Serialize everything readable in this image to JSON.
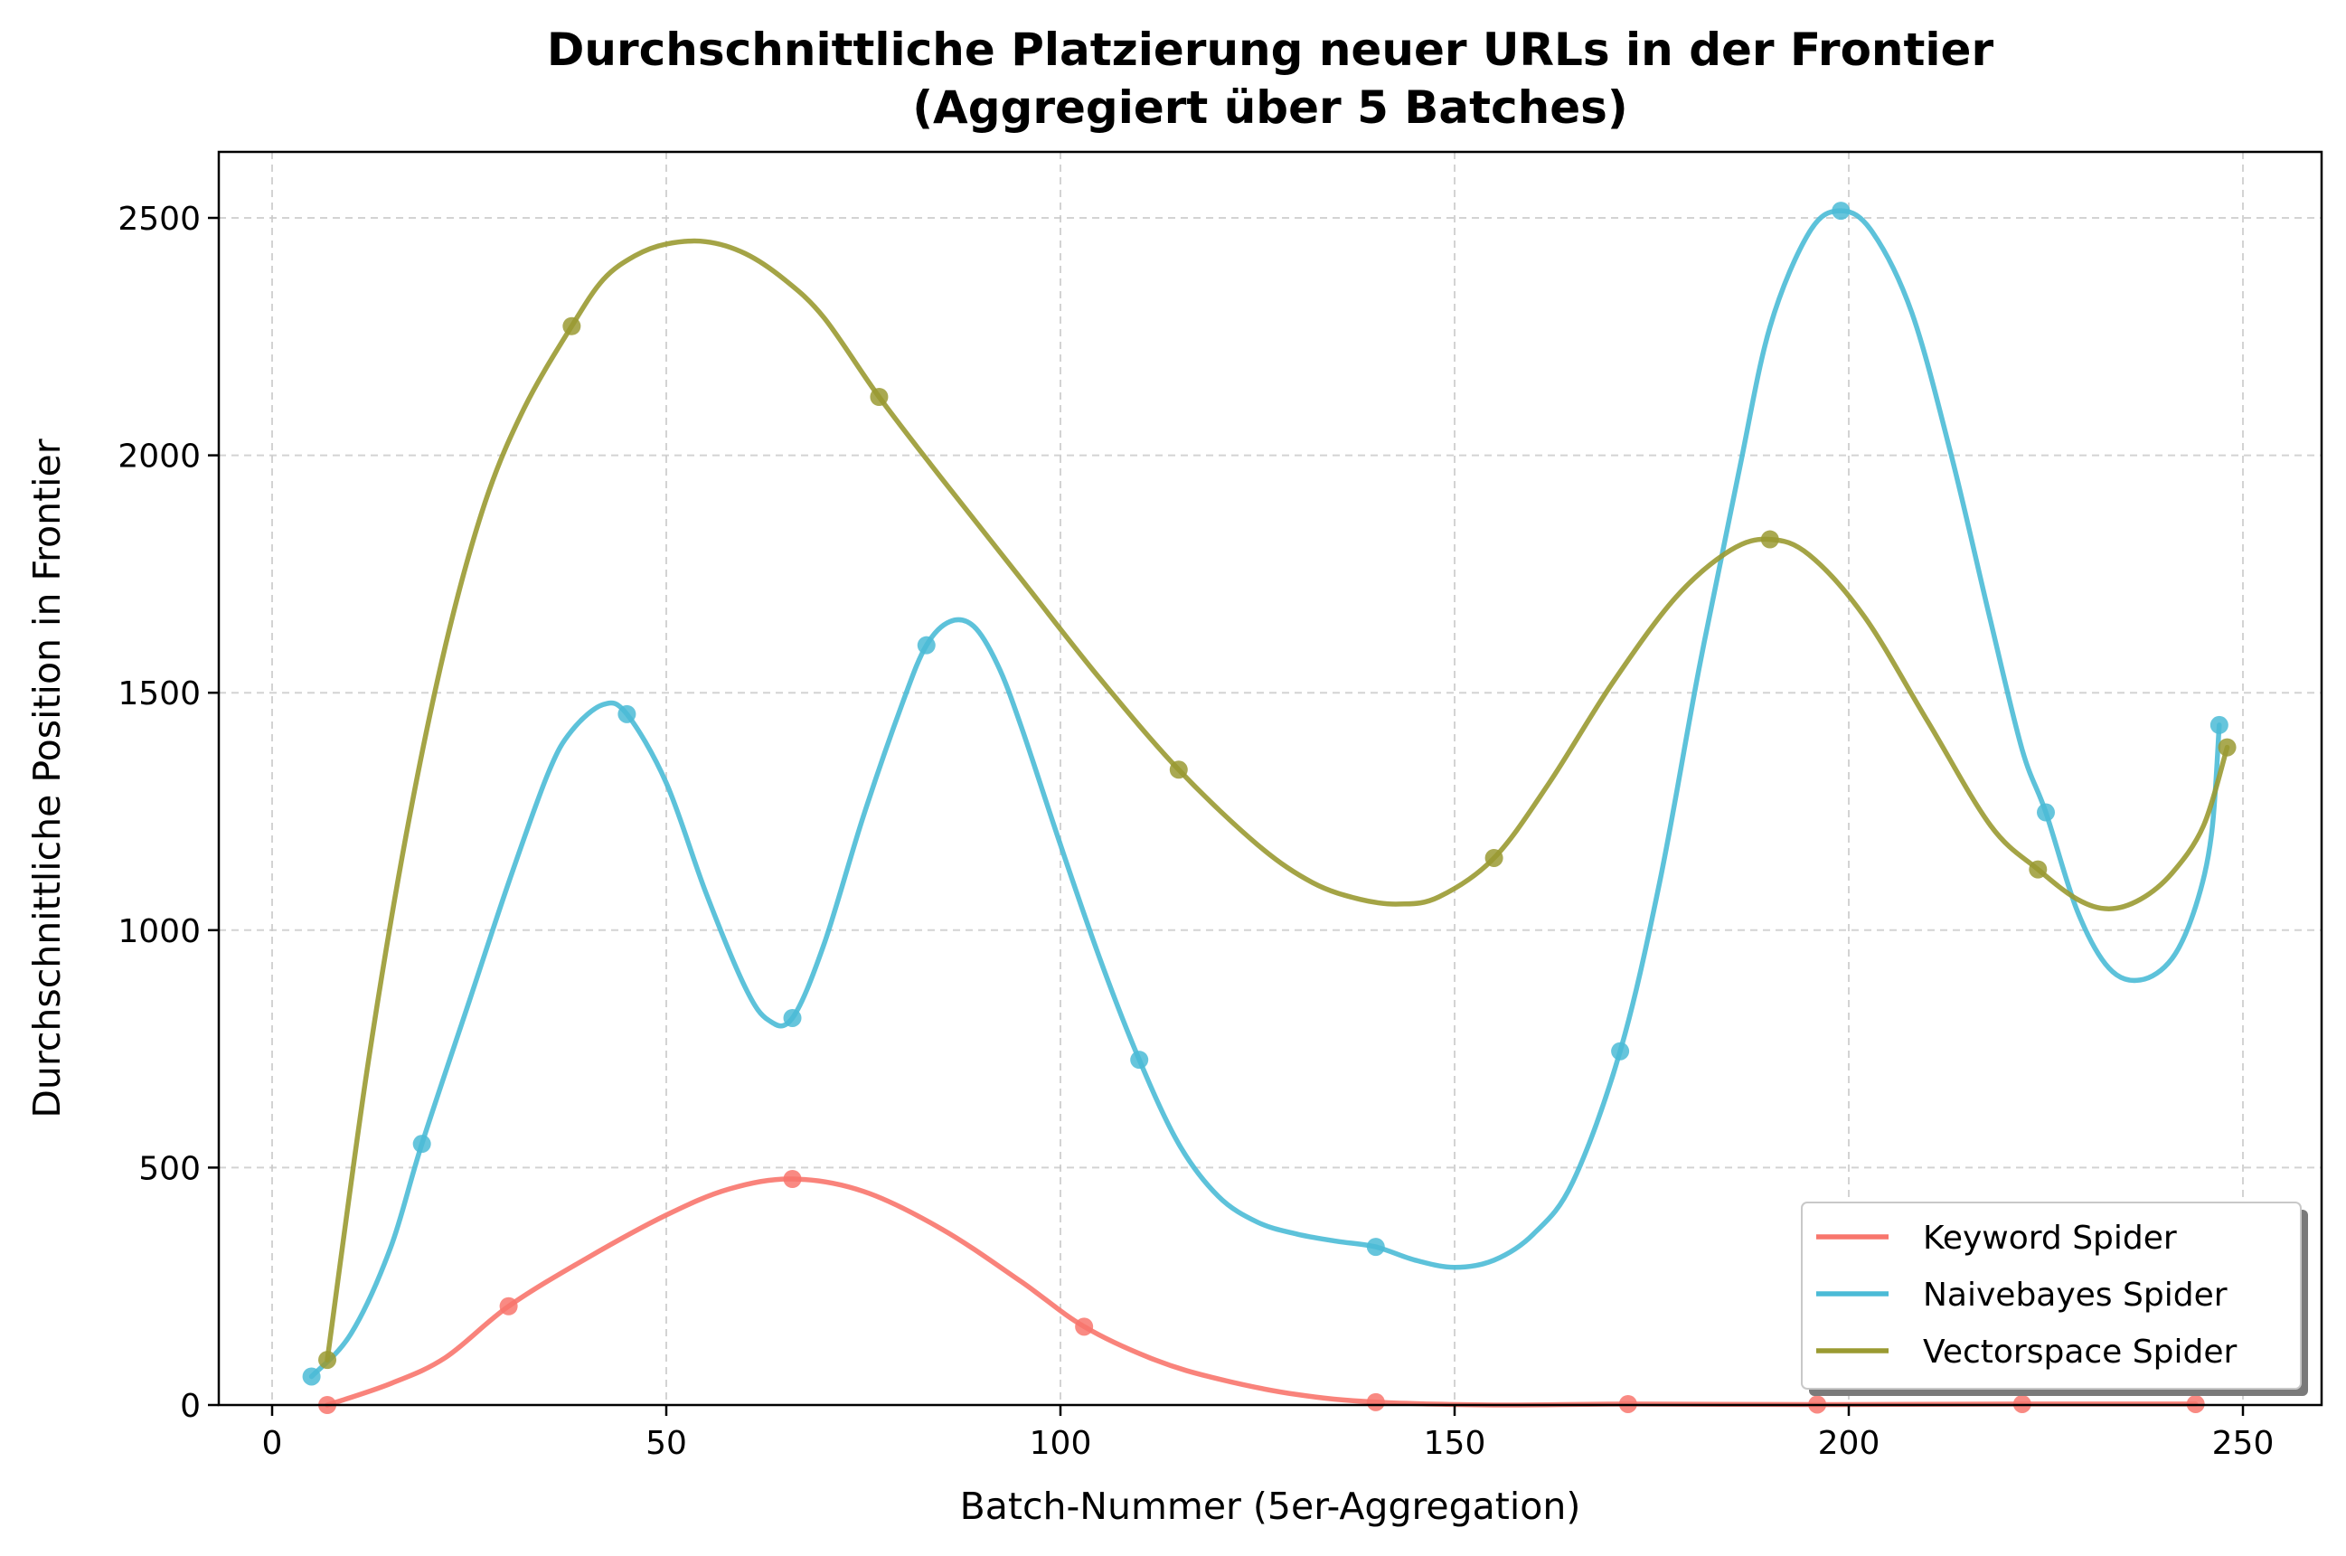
{
  "chart_data": {
    "type": "line",
    "title": "Durchschnittliche Platzierung neuer URLs in der Frontier",
    "subtitle": "(Aggregiert über 5 Batches)",
    "xlabel": "Batch-Nummer (5er-Aggregation)",
    "ylabel": "Durchschnittliche Position in Frontier",
    "xlim": [
      -7,
      260
    ],
    "ylim": [
      0,
      2640
    ],
    "x_ticks": [
      0,
      50,
      100,
      150,
      200,
      250
    ],
    "y_ticks": [
      0,
      500,
      1000,
      1500,
      2000,
      2500
    ],
    "grid": true,
    "legend_position": "lower right",
    "series": [
      {
        "name": "Keyword Spider",
        "color": "#f8766d",
        "points": [
          [
            7,
            0
          ],
          [
            30,
            208
          ],
          [
            66,
            476
          ],
          [
            103,
            165
          ],
          [
            140,
            6
          ],
          [
            172,
            2
          ],
          [
            196,
            1
          ],
          [
            222,
            2
          ],
          [
            244,
            2
          ]
        ],
        "curve": [
          [
            7,
            0
          ],
          [
            15,
            45
          ],
          [
            22,
            100
          ],
          [
            30,
            208
          ],
          [
            40,
            310
          ],
          [
            50,
            400
          ],
          [
            58,
            455
          ],
          [
            66,
            476
          ],
          [
            75,
            450
          ],
          [
            85,
            370
          ],
          [
            95,
            260
          ],
          [
            103,
            165
          ],
          [
            112,
            95
          ],
          [
            120,
            55
          ],
          [
            130,
            22
          ],
          [
            140,
            6
          ],
          [
            155,
            0
          ],
          [
            172,
            2
          ],
          [
            196,
            1
          ],
          [
            222,
            2
          ],
          [
            244,
            2
          ]
        ]
      },
      {
        "name": "Naivebayes Spider",
        "color": "#4bbbd6",
        "points": [
          [
            5,
            60
          ],
          [
            19,
            550
          ],
          [
            45,
            1455
          ],
          [
            66,
            815
          ],
          [
            83,
            1600
          ],
          [
            110,
            727
          ],
          [
            140,
            333
          ],
          [
            171,
            745
          ],
          [
            199,
            2515
          ],
          [
            225,
            1248
          ],
          [
            247,
            1432
          ]
        ],
        "curve": [
          [
            5,
            60
          ],
          [
            10,
            150
          ],
          [
            15,
            330
          ],
          [
            19,
            550
          ],
          [
            25,
            850
          ],
          [
            30,
            1100
          ],
          [
            35,
            1330
          ],
          [
            38,
            1420
          ],
          [
            42,
            1475
          ],
          [
            45,
            1455
          ],
          [
            50,
            1310
          ],
          [
            55,
            1080
          ],
          [
            60,
            880
          ],
          [
            63,
            810
          ],
          [
            66,
            815
          ],
          [
            70,
            970
          ],
          [
            75,
            1240
          ],
          [
            80,
            1480
          ],
          [
            83,
            1600
          ],
          [
            86,
            1650
          ],
          [
            89,
            1640
          ],
          [
            92,
            1560
          ],
          [
            95,
            1430
          ],
          [
            100,
            1180
          ],
          [
            105,
            940
          ],
          [
            110,
            727
          ],
          [
            115,
            550
          ],
          [
            120,
            440
          ],
          [
            125,
            385
          ],
          [
            130,
            360
          ],
          [
            135,
            345
          ],
          [
            140,
            333
          ],
          [
            145,
            305
          ],
          [
            150,
            290
          ],
          [
            155,
            305
          ],
          [
            160,
            360
          ],
          [
            165,
            470
          ],
          [
            171,
            745
          ],
          [
            176,
            1100
          ],
          [
            181,
            1550
          ],
          [
            186,
            1960
          ],
          [
            190,
            2270
          ],
          [
            195,
            2470
          ],
          [
            199,
            2515
          ],
          [
            203,
            2470
          ],
          [
            208,
            2300
          ],
          [
            213,
            2000
          ],
          [
            218,
            1650
          ],
          [
            222,
            1380
          ],
          [
            225,
            1248
          ],
          [
            229,
            1040
          ],
          [
            233,
            920
          ],
          [
            237,
            895
          ],
          [
            241,
            940
          ],
          [
            244,
            1050
          ],
          [
            246,
            1200
          ],
          [
            247,
            1432
          ]
        ]
      },
      {
        "name": "Vectorspace Spider",
        "color": "#9a9a32",
        "points": [
          [
            7,
            95
          ],
          [
            38,
            2272
          ],
          [
            77,
            2123
          ],
          [
            115,
            1338
          ],
          [
            155,
            1152
          ],
          [
            190,
            1823
          ],
          [
            224,
            1128
          ],
          [
            248,
            1385
          ]
        ],
        "curve": [
          [
            7,
            95
          ],
          [
            12,
            700
          ],
          [
            17,
            1200
          ],
          [
            22,
            1600
          ],
          [
            27,
            1900
          ],
          [
            32,
            2100
          ],
          [
            38,
            2272
          ],
          [
            42,
            2370
          ],
          [
            46,
            2420
          ],
          [
            50,
            2445
          ],
          [
            55,
            2450
          ],
          [
            60,
            2425
          ],
          [
            65,
            2370
          ],
          [
            70,
            2290
          ],
          [
            77,
            2123
          ],
          [
            85,
            1950
          ],
          [
            95,
            1740
          ],
          [
            105,
            1530
          ],
          [
            115,
            1338
          ],
          [
            125,
            1180
          ],
          [
            132,
            1100
          ],
          [
            138,
            1065
          ],
          [
            143,
            1055
          ],
          [
            148,
            1070
          ],
          [
            155,
            1152
          ],
          [
            162,
            1310
          ],
          [
            170,
            1520
          ],
          [
            178,
            1700
          ],
          [
            185,
            1800
          ],
          [
            190,
            1823
          ],
          [
            195,
            1790
          ],
          [
            202,
            1660
          ],
          [
            210,
            1440
          ],
          [
            218,
            1220
          ],
          [
            224,
            1128
          ],
          [
            229,
            1065
          ],
          [
            233,
            1045
          ],
          [
            237,
            1065
          ],
          [
            241,
            1120
          ],
          [
            245,
            1220
          ],
          [
            248,
            1385
          ]
        ]
      }
    ]
  }
}
